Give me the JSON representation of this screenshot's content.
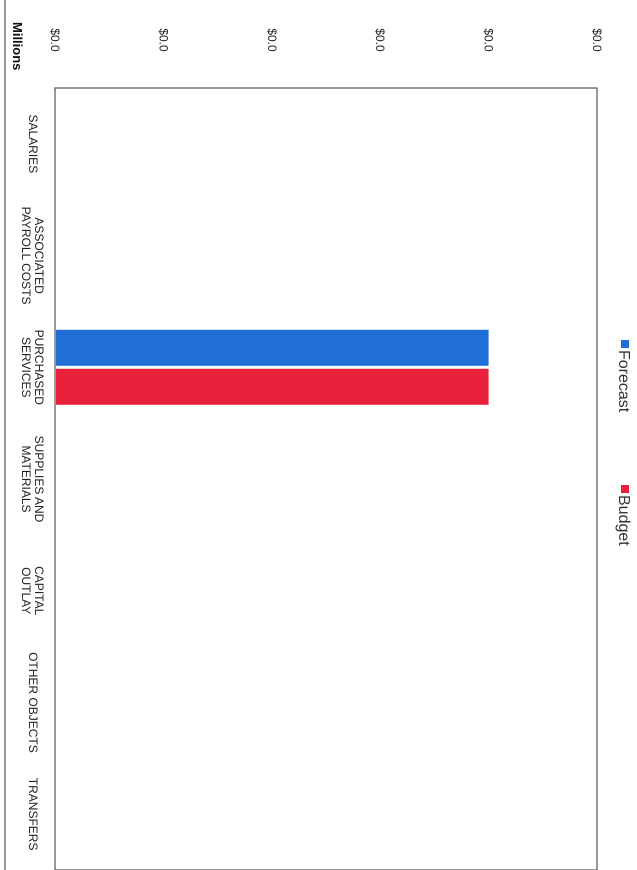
{
  "chart_data": {
    "type": "bar",
    "orientation": "horizontal",
    "rotated_clockwise_90": true,
    "units_label": "Millions",
    "categories": [
      "SALARIES",
      "ASSOCIATED PAYROLL COSTS",
      "PURCHASED SERVICES",
      "SUPPLIES AND MATERIALS",
      "CAPITAL OUTLAY",
      "OTHER OBJECTS",
      "TRANSFERS"
    ],
    "category_lines": [
      [
        "SALARIES"
      ],
      [
        "ASSOCIATED",
        "PAYROLL COSTS"
      ],
      [
        "PURCHASED",
        "SERVICES"
      ],
      [
        "SUPPLIES AND",
        "MATERIALS"
      ],
      [
        "CAPITAL",
        "OUTLAY"
      ],
      [
        "OTHER OBJECTS"
      ],
      [
        "TRANSFERS"
      ]
    ],
    "series": [
      {
        "name": "Forecast",
        "color": "#1f6fd6",
        "values": [
          0,
          0,
          0.04,
          0,
          0,
          0,
          0
        ]
      },
      {
        "name": "Budget",
        "color": "#e8203a",
        "values": [
          0,
          0,
          0.04,
          0,
          0,
          0,
          0
        ]
      }
    ],
    "xlim": [
      0,
      0.05
    ],
    "ticks": [
      0,
      0.01,
      0.02,
      0.03,
      0.04,
      0.05
    ],
    "tick_labels": [
      "$0.0",
      "$0.0",
      "$0.0",
      "$0.0",
      "$0.0",
      "$0.0"
    ],
    "legend_position": "top",
    "grid": false
  }
}
